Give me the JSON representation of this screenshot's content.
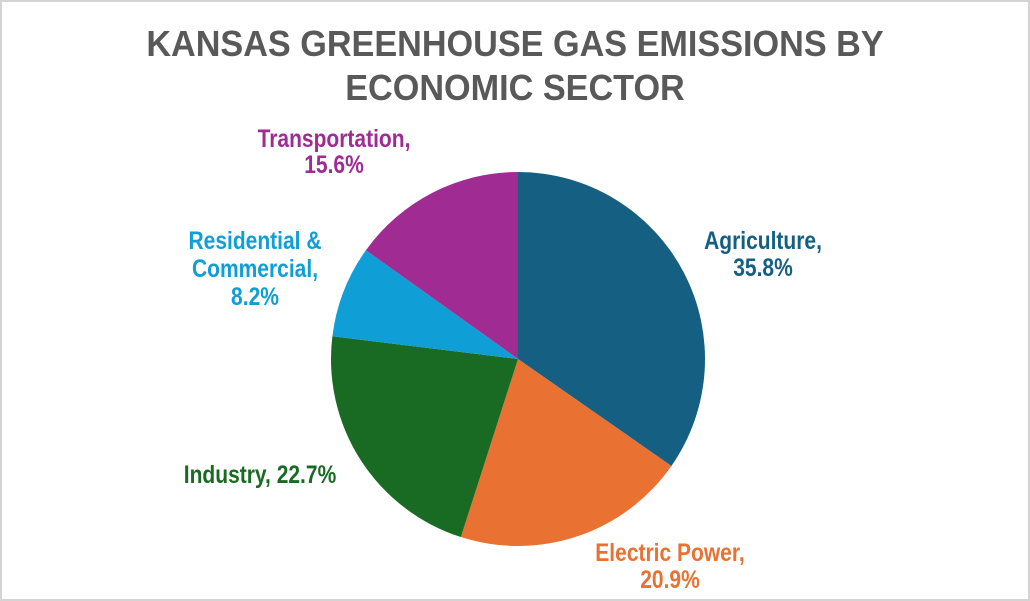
{
  "title": {
    "line1": "KANSAS GREENHOUSE GAS EMISSIONS BY",
    "line2": "ECONOMIC SECTOR",
    "color": "#595959"
  },
  "chart_data": {
    "type": "pie",
    "title": "KANSAS GREENHOUSE GAS EMISSIONS BY ECONOMIC SECTOR",
    "start_angle_deg": 0,
    "direction": "clockwise",
    "labels_position": "outside",
    "legend": "none",
    "background_color": "#ffffff",
    "slices": [
      {
        "id": "agriculture",
        "label": "Agriculture",
        "value": 35.8,
        "color": "#156082",
        "label_lines": [
          "Agriculture,",
          "35.8%"
        ]
      },
      {
        "id": "electric-power",
        "label": "Electric Power",
        "value": 20.9,
        "color": "#E97132",
        "label_lines": [
          "Electric Power,",
          "20.9%"
        ]
      },
      {
        "id": "industry",
        "label": "Industry",
        "value": 22.7,
        "color": "#196B24",
        "label_lines": [
          "Industry, 22.7%"
        ]
      },
      {
        "id": "residential-commercial",
        "label": "Residential & Commercial",
        "value": 8.2,
        "color": "#0F9ED5",
        "label_lines": [
          "Residential &",
          "Commercial,",
          "8.2%"
        ]
      },
      {
        "id": "transportation",
        "label": "Transportation",
        "value": 15.6,
        "color": "#A02B93",
        "label_lines": [
          "Transportation,",
          "15.6%"
        ]
      }
    ]
  }
}
